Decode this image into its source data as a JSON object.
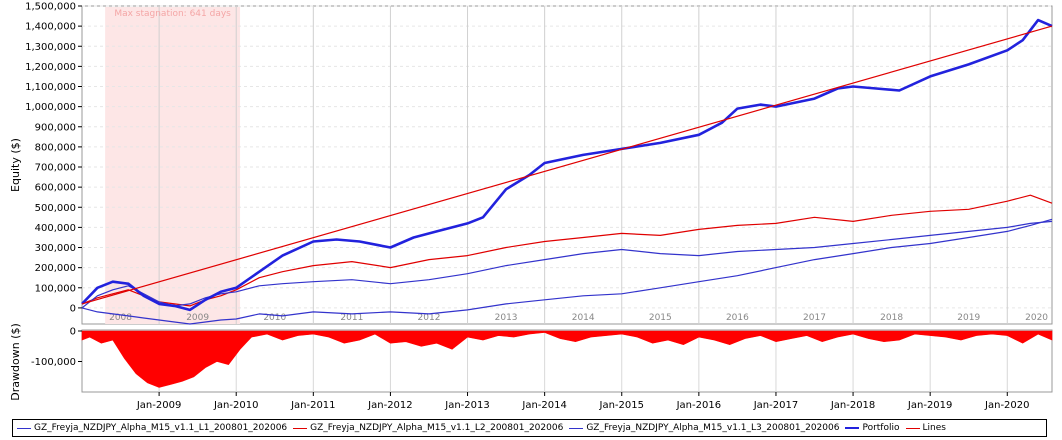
{
  "chart_data": [
    {
      "type": "line",
      "ylabel": "Equity ($)",
      "ylim": [
        -80000,
        1500000
      ],
      "y_ticks": [
        "1,500,000",
        "1,400,000",
        "1,300,000",
        "1,200,000",
        "1,100,000",
        "1,000,000",
        "900,000",
        "800,000",
        "700,000",
        "600,000",
        "500,000",
        "400,000",
        "300,000",
        "200,000",
        "100,000",
        "0"
      ],
      "y_tick_values": [
        1500000,
        1400000,
        1300000,
        1200000,
        1100000,
        1000000,
        900000,
        800000,
        700000,
        600000,
        500000,
        400000,
        300000,
        200000,
        100000,
        0
      ],
      "year_labels": [
        "2008",
        "2009",
        "2010",
        "2011",
        "2012",
        "2013",
        "2014",
        "2015",
        "2016",
        "2017",
        "2018",
        "2019",
        "2020"
      ],
      "x_range": [
        2008.0,
        2020.58
      ],
      "annotation": {
        "label": "Max stagnation: 641 days",
        "x_start": 2008.3,
        "x_end": 2010.05
      },
      "grid": true,
      "legend": "bottom",
      "series": [
        {
          "name": "GZ_Freyja_NZDJPY_Alpha_M15_v1.1_L1_200801_202006",
          "color": "#3333cc",
          "width": 1.2,
          "x": [
            2008.0,
            2008.2,
            2008.4,
            2008.6,
            2008.8,
            2009.0,
            2009.2,
            2009.4,
            2009.6,
            2009.8,
            2010.0,
            2010.3,
            2010.6,
            2011.0,
            2011.5,
            2012.0,
            2012.5,
            2013.0,
            2013.5,
            2014.0,
            2014.5,
            2015.0,
            2015.5,
            2016.0,
            2016.5,
            2017.0,
            2017.5,
            2018.0,
            2018.5,
            2019.0,
            2019.5,
            2020.0,
            2020.3,
            2020.58
          ],
          "y": [
            0,
            -20000,
            -30000,
            -40000,
            -50000,
            -60000,
            -70000,
            -80000,
            -70000,
            -60000,
            -55000,
            -30000,
            -40000,
            -20000,
            -30000,
            -20000,
            -30000,
            -10000,
            20000,
            40000,
            60000,
            70000,
            100000,
            130000,
            160000,
            200000,
            240000,
            270000,
            300000,
            320000,
            350000,
            380000,
            410000,
            440000
          ]
        },
        {
          "name": "GZ_Freyja_NZDJPY_Alpha_M15_v1.1_L2_200801_202006",
          "color": "#e00000",
          "width": 1.2,
          "x": [
            2008.0,
            2008.2,
            2008.4,
            2008.6,
            2008.8,
            2009.0,
            2009.2,
            2009.4,
            2009.6,
            2009.8,
            2010.0,
            2010.3,
            2010.6,
            2011.0,
            2011.5,
            2012.0,
            2012.5,
            2013.0,
            2013.5,
            2014.0,
            2014.5,
            2015.0,
            2015.5,
            2016.0,
            2016.5,
            2017.0,
            2017.5,
            2018.0,
            2018.5,
            2019.0,
            2019.5,
            2020.0,
            2020.3,
            2020.58
          ],
          "y": [
            20000,
            50000,
            70000,
            90000,
            60000,
            30000,
            20000,
            10000,
            40000,
            60000,
            90000,
            150000,
            180000,
            210000,
            230000,
            200000,
            240000,
            260000,
            300000,
            330000,
            350000,
            370000,
            360000,
            390000,
            410000,
            420000,
            450000,
            430000,
            460000,
            480000,
            490000,
            530000,
            560000,
            520000
          ]
        },
        {
          "name": "GZ_Freyja_NZDJPY_Alpha_M15_v1.1_L3_200801_202006",
          "color": "#3333cc",
          "width": 1.2,
          "x": [
            2008.0,
            2008.2,
            2008.4,
            2008.6,
            2008.8,
            2009.0,
            2009.2,
            2009.4,
            2009.6,
            2009.8,
            2010.0,
            2010.3,
            2010.6,
            2011.0,
            2011.5,
            2012.0,
            2012.5,
            2013.0,
            2013.5,
            2014.0,
            2014.5,
            2015.0,
            2015.5,
            2016.0,
            2016.5,
            2017.0,
            2017.5,
            2018.0,
            2018.5,
            2019.0,
            2019.5,
            2020.0,
            2020.3,
            2020.58
          ],
          "y": [
            0,
            60000,
            90000,
            110000,
            70000,
            30000,
            10000,
            20000,
            50000,
            70000,
            80000,
            110000,
            120000,
            130000,
            140000,
            120000,
            140000,
            170000,
            210000,
            240000,
            270000,
            290000,
            270000,
            260000,
            280000,
            290000,
            300000,
            320000,
            340000,
            360000,
            380000,
            400000,
            420000,
            430000
          ]
        },
        {
          "name": "Portfolio",
          "color": "#2222dd",
          "width": 2.6,
          "x": [
            2008.0,
            2008.2,
            2008.4,
            2008.6,
            2008.8,
            2009.0,
            2009.2,
            2009.4,
            2009.6,
            2009.8,
            2010.0,
            2010.3,
            2010.6,
            2011.0,
            2011.3,
            2011.6,
            2012.0,
            2012.3,
            2012.6,
            2013.0,
            2013.2,
            2013.5,
            2013.8,
            2014.0,
            2014.5,
            2015.0,
            2015.5,
            2016.0,
            2016.3,
            2016.5,
            2016.8,
            2017.0,
            2017.5,
            2017.8,
            2018.0,
            2018.3,
            2018.6,
            2019.0,
            2019.5,
            2020.0,
            2020.2,
            2020.4,
            2020.58
          ],
          "y": [
            20000,
            100000,
            130000,
            120000,
            60000,
            20000,
            10000,
            -10000,
            40000,
            80000,
            100000,
            180000,
            260000,
            330000,
            340000,
            330000,
            300000,
            350000,
            380000,
            420000,
            450000,
            590000,
            660000,
            720000,
            760000,
            790000,
            820000,
            860000,
            920000,
            990000,
            1010000,
            1000000,
            1040000,
            1090000,
            1100000,
            1090000,
            1080000,
            1150000,
            1210000,
            1280000,
            1330000,
            1430000,
            1400000
          ]
        },
        {
          "name": "Lines",
          "color": "#e00000",
          "width": 1.2,
          "x": [
            2008.0,
            2020.58
          ],
          "y": [
            20000,
            1400000
          ]
        }
      ]
    },
    {
      "type": "area",
      "ylabel": "Drawdown ($)",
      "ylim": [
        -200000,
        0
      ],
      "y_ticks": [
        "0",
        "-100,000"
      ],
      "y_tick_values": [
        0,
        -100000
      ],
      "x_labels": [
        "Jan-2009",
        "Jan-2010",
        "Jan-2011",
        "Jan-2012",
        "Jan-2013",
        "Jan-2014",
        "Jan-2015",
        "Jan-2016",
        "Jan-2017",
        "Jan-2018",
        "Jan-2019",
        "Jan-2020"
      ],
      "x_label_values": [
        2009,
        2010,
        2011,
        2012,
        2013,
        2014,
        2015,
        2016,
        2017,
        2018,
        2019,
        2020
      ],
      "color": "#ff0000",
      "x": [
        2008.0,
        2008.1,
        2008.25,
        2008.4,
        2008.55,
        2008.7,
        2008.85,
        2009.0,
        2009.15,
        2009.3,
        2009.45,
        2009.6,
        2009.75,
        2009.9,
        2010.05,
        2010.2,
        2010.4,
        2010.6,
        2010.8,
        2011.0,
        2011.2,
        2011.4,
        2011.6,
        2011.8,
        2012.0,
        2012.2,
        2012.4,
        2012.6,
        2012.8,
        2013.0,
        2013.2,
        2013.4,
        2013.6,
        2013.8,
        2014.0,
        2014.2,
        2014.4,
        2014.6,
        2014.8,
        2015.0,
        2015.2,
        2015.4,
        2015.6,
        2015.8,
        2016.0,
        2016.2,
        2016.4,
        2016.6,
        2016.8,
        2017.0,
        2017.2,
        2017.4,
        2017.6,
        2017.8,
        2018.0,
        2018.2,
        2018.4,
        2018.6,
        2018.8,
        2019.0,
        2019.2,
        2019.4,
        2019.6,
        2019.8,
        2020.0,
        2020.2,
        2020.4,
        2020.58
      ],
      "y": [
        -30000,
        -20000,
        -40000,
        -30000,
        -90000,
        -140000,
        -170000,
        -185000,
        -175000,
        -165000,
        -150000,
        -120000,
        -100000,
        -110000,
        -60000,
        -20000,
        -10000,
        -30000,
        -15000,
        -10000,
        -20000,
        -40000,
        -30000,
        -10000,
        -40000,
        -35000,
        -50000,
        -40000,
        -60000,
        -20000,
        -30000,
        -15000,
        -20000,
        -10000,
        -5000,
        -25000,
        -35000,
        -20000,
        -15000,
        -10000,
        -20000,
        -40000,
        -30000,
        -45000,
        -20000,
        -30000,
        -45000,
        -25000,
        -15000,
        -35000,
        -25000,
        -15000,
        -35000,
        -20000,
        -10000,
        -25000,
        -35000,
        -30000,
        -10000,
        -15000,
        -20000,
        -30000,
        -15000,
        -10000,
        -15000,
        -40000,
        -10000,
        -30000
      ]
    }
  ],
  "legend_items": [
    {
      "label": "GZ_Freyja_NZDJPY_Alpha_M15_v1.1_L1_200801_202006",
      "color": "#3333cc",
      "thick": false
    },
    {
      "label": "GZ_Freyja_NZDJPY_Alpha_M15_v1.1_L2_200801_202006",
      "color": "#e00000",
      "thick": false
    },
    {
      "label": "GZ_Freyja_NZDJPY_Alpha_M15_v1.1_L3_200801_202006",
      "color": "#3333cc",
      "thick": false
    },
    {
      "label": "Portfolio",
      "color": "#2222dd",
      "thick": true
    },
    {
      "label": "Lines",
      "color": "#e00000",
      "thick": false
    }
  ]
}
